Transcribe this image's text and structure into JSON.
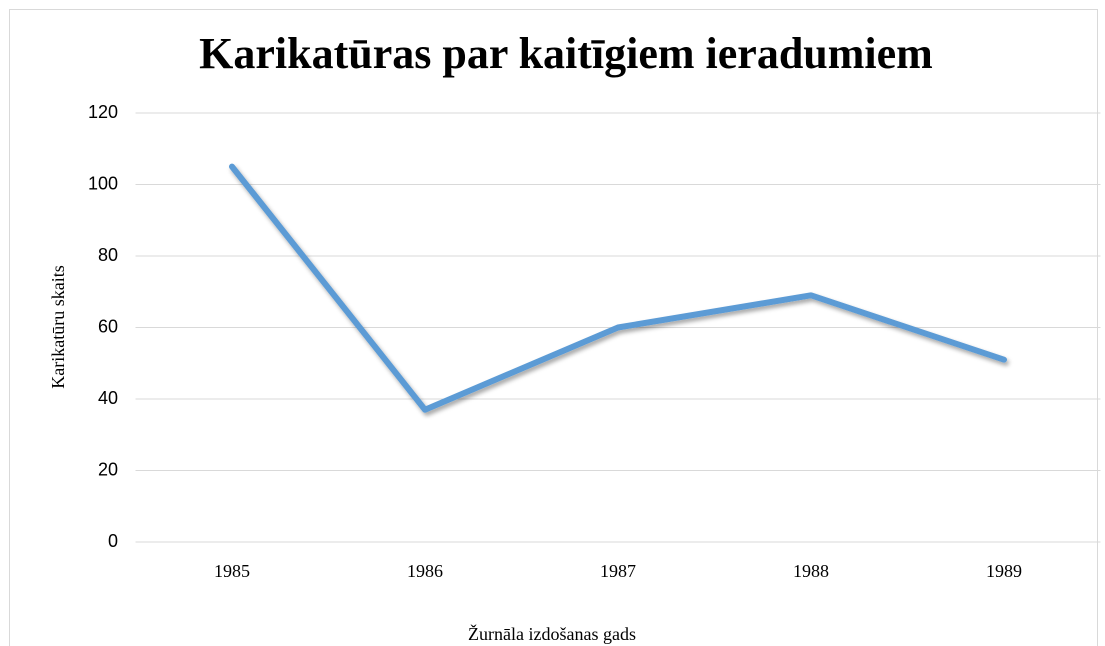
{
  "chart_data": {
    "type": "line",
    "title": "Karikatūras par kaitīgiem ieradumiem",
    "x_label": "Žurnāla izdošanas gads",
    "y_label": "Karikatūru skaits",
    "categories": [
      "1985",
      "1986",
      "1987",
      "1988",
      "1989"
    ],
    "values": [
      105,
      37,
      60,
      69,
      51
    ],
    "color": "#5b9bd5",
    "ylim": [
      0,
      120
    ],
    "yticks": [
      0,
      20,
      40,
      60,
      80,
      100,
      120
    ],
    "grid": true
  }
}
